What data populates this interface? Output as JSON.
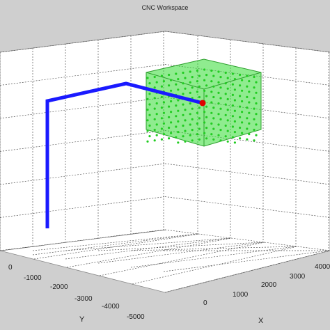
{
  "window": {
    "title": "CNC Workspace"
  },
  "axes": {
    "x_label": "X",
    "y_label": "Y",
    "x_ticks": [
      "0",
      "1000",
      "2000",
      "3000",
      "4000"
    ],
    "y_ticks": [
      "0",
      "-1000",
      "-2000",
      "-3000",
      "-4000",
      "-5000"
    ],
    "grid": true,
    "grid_style": "dashed",
    "background": "#ffffff",
    "figure_background": "#cfcfcf"
  },
  "scene": {
    "toolpath_color": "#1a1aff",
    "workspace_cube_color": "#33dd33",
    "cube_edge_color": "#2ea02e",
    "tool_point_color": "#e00000"
  }
}
